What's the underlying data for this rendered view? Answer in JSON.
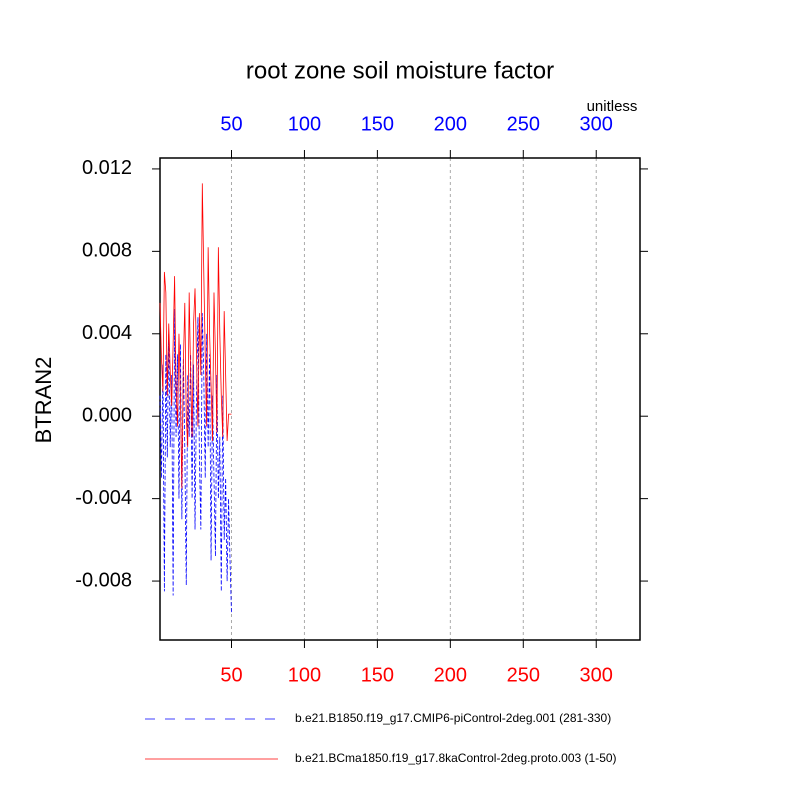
{
  "chart_data": {
    "type": "line",
    "title": "root zone soil moisture factor",
    "units": "unitless",
    "ylabel": "BTRAN2",
    "x": [
      1,
      2,
      3,
      4,
      5,
      6,
      7,
      8,
      9,
      10,
      11,
      12,
      13,
      14,
      15,
      16,
      17,
      18,
      19,
      20,
      21,
      22,
      23,
      24,
      25,
      26,
      27,
      28,
      29,
      30,
      31,
      32,
      33,
      34,
      35,
      36,
      37,
      38,
      39,
      40,
      41,
      42,
      43,
      44,
      45,
      46,
      47,
      48,
      49,
      50
    ],
    "xlim": [
      1,
      330
    ],
    "xticks": [
      50,
      100,
      150,
      200,
      250,
      300
    ],
    "xtick_colors": {
      "top": "#0000ff",
      "bottom": "#ff0000"
    },
    "ylim": [
      -0.01086,
      0.01253
    ],
    "yticks": [
      -0.008,
      -0.004,
      {
        "value": 0,
        "label": "0.000"
      },
      0.004,
      0.008,
      0.012
    ],
    "xgrid": true,
    "series": [
      {
        "name": "b.e21.B1850.f19_g17.CMIP6-piControl-2deg.001 (281-330)",
        "color": "#0000ff",
        "style": "dashed",
        "values": [
          0.001,
          -0.003,
          0.0025,
          -0.0085,
          0.003,
          -0.002,
          0.004,
          -0.0015,
          0.002,
          -0.0087,
          0.0052,
          -0.001,
          0.003,
          -0.004,
          0.0035,
          -0.005,
          0.0028,
          -0.0015,
          -0.0082,
          0.002,
          -0.001,
          0.003,
          -0.004,
          0.0025,
          -0.0055,
          0.001,
          0.0048,
          -0.002,
          -0.0055,
          0.005,
          0.002,
          -0.003,
          0.004,
          -0.0015,
          0.003,
          -0.007,
          0.001,
          -0.003,
          -0.0068,
          0.002,
          -0.004,
          -0.001,
          -0.0085,
          0.001,
          -0.006,
          -0.003,
          -0.008,
          -0.004,
          -0.007,
          -0.0096
        ]
      },
      {
        "name": "b.e21.BCma1850.f19_g17.8kaControl-2deg.proto.003 (1-50)",
        "color": "#ff0000",
        "style": "solid",
        "values": [
          0.0055,
          0.0028,
          0.0012,
          0.007,
          0.006,
          0.001,
          0.0045,
          0.0022,
          0.0005,
          0.0035,
          0.0068,
          0.0015,
          -0.0005,
          0.004,
          0.001,
          -0.0035,
          0.0025,
          0.0055,
          0.0,
          -0.0015,
          0.006,
          0.002,
          -0.001,
          0.0045,
          0.0062,
          0.003,
          -0.0005,
          0.005,
          0.002,
          0.0113,
          0.007,
          0.003,
          -0.0005,
          0.0082,
          0.004,
          0.0015,
          -0.0012,
          0.006,
          0.003,
          -0.0008,
          0.0082,
          0.004,
          0.001,
          -0.001,
          0.0051,
          0.002,
          -0.0012,
          0.0001,
          0.0001,
          0.0001
        ]
      }
    ]
  }
}
